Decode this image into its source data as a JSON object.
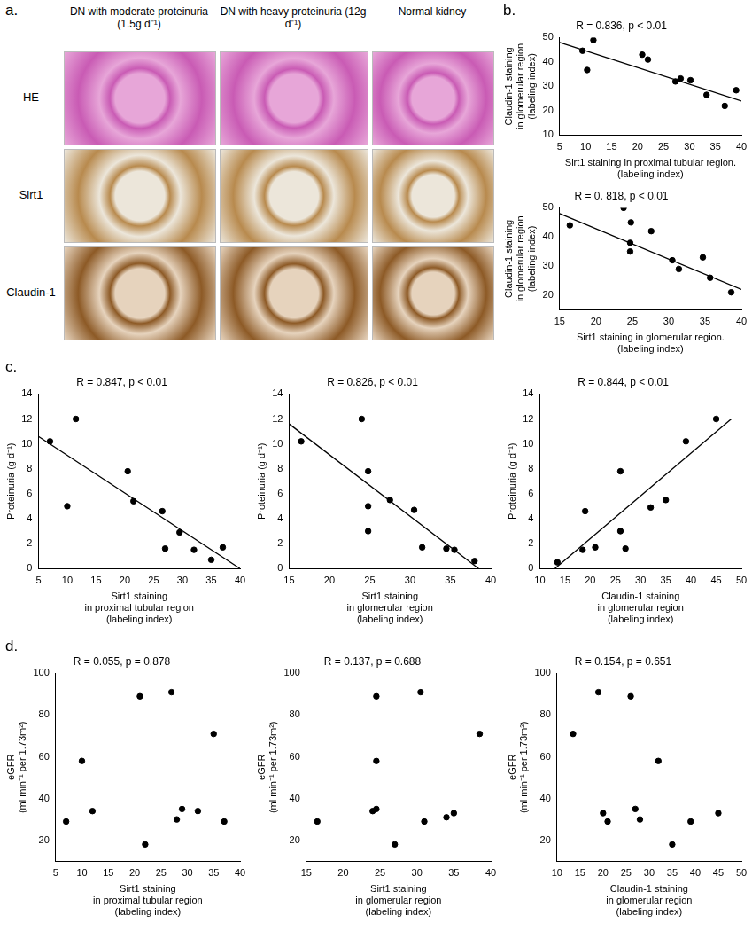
{
  "panel_a": {
    "label": "a.",
    "columns": [
      "DN with moderate proteinuria (1.5g d⁻¹)",
      "DN with heavy proteinuria (12g d⁻¹)",
      "Normal kidney"
    ],
    "rows": [
      "HE",
      "Sirt1",
      "Claudin-1"
    ]
  },
  "chart_data": [
    {
      "type": "scatter",
      "panel_label": "b.",
      "title": "R = 0.836, p < 0.01",
      "x_label": [
        "Sirt1 staining in proximal tubular region.",
        "(labeling index)"
      ],
      "y_label": [
        "Claudin-1 staining",
        "in glomerular region",
        "(labeling index)"
      ],
      "x": [
        9.4,
        10.3,
        11.5,
        20.9,
        22,
        27.3,
        28.3,
        30.2,
        33.3,
        36.8,
        39
      ],
      "values": [
        44.6,
        36.7,
        49,
        43,
        41,
        32,
        33.2,
        32.5,
        26.5,
        22,
        28.4
      ],
      "trend_line": {
        "x": [
          5,
          40
        ],
        "values": [
          48,
          24
        ]
      },
      "color": "#000000",
      "xlim": [
        5,
        40
      ],
      "xticks": [
        5,
        10,
        15,
        20,
        25,
        30,
        35,
        40
      ],
      "ylim": [
        10,
        50
      ],
      "yticks": [
        10,
        20,
        30,
        40,
        50
      ],
      "grid": false
    },
    {
      "type": "scatter",
      "title": "R = 0. 818, p < 0.01",
      "x_label": [
        "Sirt1 staining in glomerular region.",
        "(labeling index)"
      ],
      "y_label": [
        "Claudin-1 staining",
        "in glomerular region",
        "(labeling index)"
      ],
      "x": [
        16.4,
        23.8,
        24.8,
        24.7,
        24.7,
        27.6,
        30.5,
        31.4,
        34.7,
        35.7,
        38.6
      ],
      "values": [
        44,
        50,
        45,
        38,
        35,
        42,
        32,
        29,
        33,
        26,
        21
      ],
      "trend_line": {
        "x": [
          15,
          40
        ],
        "values": [
          48,
          22
        ]
      },
      "color": "#000000",
      "xlim": [
        15,
        40
      ],
      "xticks": [
        15,
        20,
        25,
        30,
        35,
        40
      ],
      "ylim": [
        15,
        50
      ],
      "yticks": [
        20,
        30,
        40,
        50
      ],
      "grid": false
    },
    {
      "type": "scatter",
      "panel_label": "c.",
      "title": "R = 0.847, p < 0.01",
      "x_label": [
        "Sirt1 staining",
        "in proximal tubular region",
        "(labeling index)"
      ],
      "y_label": [
        "Proteinuria (g d⁻¹)"
      ],
      "x": [
        7,
        10,
        11.5,
        20.5,
        21.5,
        26.5,
        27,
        29.5,
        32,
        35,
        37
      ],
      "values": [
        10.2,
        5,
        12,
        7.8,
        5.4,
        4.6,
        1.6,
        2.9,
        1.5,
        0.7,
        1.7
      ],
      "trend_line": {
        "x": [
          5,
          40
        ],
        "values": [
          10.6,
          0
        ]
      },
      "color": "#000000",
      "xlim": [
        5,
        40
      ],
      "xticks": [
        5,
        10,
        15,
        20,
        25,
        30,
        35,
        40
      ],
      "ylim": [
        0,
        14
      ],
      "yticks": [
        0,
        2,
        4,
        6,
        8,
        10,
        12,
        14
      ],
      "grid": false
    },
    {
      "type": "scatter",
      "title": "R = 0.826, p < 0.01",
      "x_label": [
        "Sirt1 staining",
        "in glomerular region",
        "(labeling index)"
      ],
      "y_label": [
        "Proteinuria (g d⁻¹)"
      ],
      "x": [
        16.5,
        24,
        24.8,
        24.8,
        24.8,
        27.5,
        30.5,
        31.5,
        34.5,
        35.5,
        38
      ],
      "values": [
        10.2,
        12,
        7.8,
        5,
        3,
        5.5,
        4.7,
        1.7,
        1.6,
        1.5,
        0.6
      ],
      "trend_line": {
        "x": [
          15,
          38.5
        ],
        "values": [
          11.6,
          0
        ]
      },
      "color": "#000000",
      "xlim": [
        15,
        40
      ],
      "xticks": [
        15,
        20,
        25,
        30,
        35,
        40
      ],
      "ylim": [
        0,
        14
      ],
      "yticks": [
        0,
        2,
        4,
        6,
        8,
        10,
        12,
        14
      ],
      "grid": false
    },
    {
      "type": "scatter",
      "title": "R = 0.844, p < 0.01",
      "x_label": [
        "Claudin-1 staining",
        "in glomerular region",
        "(labeling index)"
      ],
      "y_label": [
        "Proteinuria (g d⁻¹)"
      ],
      "x": [
        13.5,
        19,
        18.5,
        21,
        26,
        26,
        27,
        32,
        35,
        39,
        45
      ],
      "values": [
        0.5,
        4.6,
        1.5,
        1.7,
        7.8,
        3,
        1.6,
        4.9,
        5.5,
        10.2,
        12
      ],
      "trend_line": {
        "x": [
          13,
          48
        ],
        "values": [
          0,
          12
        ]
      },
      "color": "#000000",
      "xlim": [
        10,
        50
      ],
      "xticks": [
        10,
        15,
        20,
        25,
        30,
        35,
        40,
        45,
        50
      ],
      "ylim": [
        0,
        14
      ],
      "yticks": [
        0,
        2,
        4,
        6,
        8,
        10,
        12,
        14
      ],
      "grid": false
    },
    {
      "type": "scatter",
      "panel_label": "d.",
      "title": "R = 0.055, p = 0.878",
      "x_label": [
        "Sirt1 staining",
        "in proximal tubular region",
        "(labeling index)"
      ],
      "y_label": [
        "eGFR",
        "(ml min⁻¹ per 1.73m²)"
      ],
      "x": [
        7,
        10,
        12,
        21,
        22,
        27,
        28,
        29,
        32,
        35,
        37
      ],
      "values": [
        29,
        58,
        34,
        89,
        18,
        91,
        30,
        35,
        34,
        71,
        29
      ],
      "color": "#000000",
      "xlim": [
        5,
        40
      ],
      "xticks": [
        5,
        10,
        15,
        20,
        25,
        30,
        35,
        40
      ],
      "ylim": [
        10,
        100
      ],
      "yticks": [
        20,
        40,
        60,
        80,
        100
      ],
      "grid": false
    },
    {
      "type": "scatter",
      "title": "R = 0.137, p = 0.688",
      "x_label": [
        "Sirt1 staining",
        "in glomerular region",
        "(labeling index)"
      ],
      "y_label": [
        "eGFR",
        "(ml min⁻¹ per 1.73m²)"
      ],
      "x": [
        16.5,
        24,
        24.5,
        24.5,
        24.5,
        27,
        30.5,
        31,
        34,
        35,
        38.5
      ],
      "values": [
        29,
        34,
        89,
        58,
        35,
        18,
        91,
        29,
        31,
        33,
        71
      ],
      "color": "#000000",
      "xlim": [
        15,
        40
      ],
      "xticks": [
        15,
        20,
        25,
        30,
        35,
        40
      ],
      "ylim": [
        10,
        100
      ],
      "yticks": [
        20,
        40,
        60,
        80,
        100
      ],
      "grid": false
    },
    {
      "type": "scatter",
      "title": "R = 0.154, p = 0.651",
      "x_label": [
        "Claudin-1 staining",
        "in glomerular region",
        "(labeling index)"
      ],
      "y_label": [
        "eGFR",
        "(ml min⁻¹ per 1.73m²)"
      ],
      "x": [
        13.5,
        19,
        20,
        21,
        26,
        27,
        28,
        32,
        35,
        39,
        45
      ],
      "values": [
        71,
        91,
        33,
        29,
        89,
        35,
        30,
        58,
        18,
        29,
        33
      ],
      "color": "#000000",
      "xlim": [
        10,
        50
      ],
      "xticks": [
        10,
        15,
        20,
        25,
        30,
        35,
        40,
        45,
        50
      ],
      "ylim": [
        10,
        100
      ],
      "yticks": [
        20,
        40,
        60,
        80,
        100
      ],
      "grid": false
    }
  ]
}
